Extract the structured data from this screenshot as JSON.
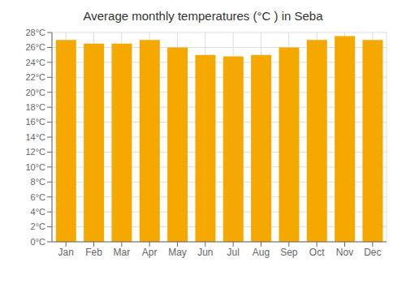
{
  "chart_data": {
    "type": "bar",
    "title": "Average monthly temperatures (°C ) in Seba",
    "categories": [
      "Jan",
      "Feb",
      "Mar",
      "Apr",
      "May",
      "Jun",
      "Jul",
      "Aug",
      "Sep",
      "Oct",
      "Nov",
      "Dec"
    ],
    "values": [
      27.0,
      26.5,
      26.5,
      27.0,
      26.0,
      25.0,
      24.8,
      25.0,
      26.0,
      27.0,
      27.5,
      27.0
    ],
    "color": "#F5A800",
    "ylim": [
      0,
      28
    ],
    "yticks": [
      {
        "value": 0,
        "label": "0°C"
      },
      {
        "value": 2,
        "label": "2°C"
      },
      {
        "value": 4,
        "label": "4°C"
      },
      {
        "value": 6,
        "label": "6°C"
      },
      {
        "value": 8,
        "label": "8°C"
      },
      {
        "value": 10,
        "label": "10°C"
      },
      {
        "value": 12,
        "label": "12°C"
      },
      {
        "value": 14,
        "label": "14°C"
      },
      {
        "value": 16,
        "label": "16°C"
      },
      {
        "value": 18,
        "label": "18°C"
      },
      {
        "value": 20,
        "label": "20°C"
      },
      {
        "value": 22,
        "label": "22°C"
      },
      {
        "value": 24,
        "label": "24°C"
      },
      {
        "value": 26,
        "label": "26°C"
      },
      {
        "value": 28,
        "label": "28°C"
      }
    ],
    "grid": true
  }
}
